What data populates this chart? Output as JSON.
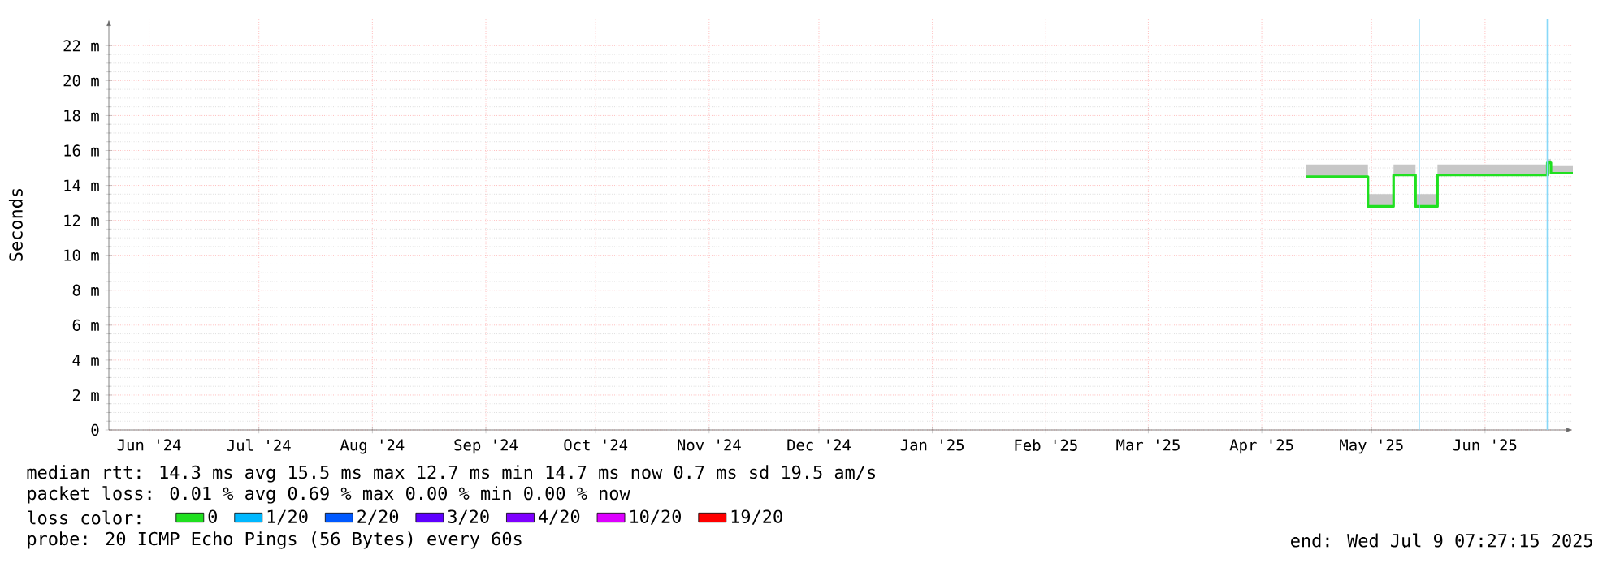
{
  "chart_data": {
    "type": "step",
    "ylabel": "Seconds",
    "legend_title": "loss color:",
    "legend": "bottom",
    "grid": true,
    "xlim": [
      "2024-06-04",
      "2025-07-09"
    ],
    "xticks": [
      {
        "value": "2024-06-15",
        "label": "Jun '24"
      },
      {
        "value": "2024-07-15",
        "label": "Jul '24"
      },
      {
        "value": "2024-08-15",
        "label": "Aug '24"
      },
      {
        "value": "2024-09-15",
        "label": "Sep '24"
      },
      {
        "value": "2024-10-15",
        "label": "Oct '24"
      },
      {
        "value": "2024-11-15",
        "label": "Nov '24"
      },
      {
        "value": "2024-12-15",
        "label": "Dec '24"
      },
      {
        "value": "2025-01-15",
        "label": "Jan '25"
      },
      {
        "value": "2025-02-15",
        "label": "Feb '25"
      },
      {
        "value": "2025-03-15",
        "label": "Mar '25"
      },
      {
        "value": "2025-04-15",
        "label": "Apr '25"
      },
      {
        "value": "2025-05-15",
        "label": "May '25"
      },
      {
        "value": "2025-06-15",
        "label": "Jun '25"
      }
    ],
    "ylim": [
      0,
      23.5
    ],
    "yticks": [
      0,
      {
        "value": 2,
        "label": "2 m"
      },
      {
        "value": 4,
        "label": "4 m"
      },
      {
        "value": 6,
        "label": "6 m"
      },
      {
        "value": 8,
        "label": "8 m"
      },
      {
        "value": 10,
        "label": "10 m"
      },
      {
        "value": 12,
        "label": "12 m"
      },
      {
        "value": 14,
        "label": "14 m"
      },
      {
        "value": 16,
        "label": "16 m"
      },
      {
        "value": 18,
        "label": "18 m"
      },
      {
        "value": 20,
        "label": "20 m"
      },
      {
        "value": 22,
        "label": "22 m"
      }
    ],
    "series": [
      {
        "name": "0",
        "color": "#20e020",
        "x": [
          "2025-04-27",
          "2025-05-14",
          "2025-05-21",
          "2025-05-27",
          "2025-06-02",
          "2025-07-02",
          "2025-07-03",
          "2025-07-09"
        ],
        "values": [
          14.5,
          12.8,
          14.6,
          12.8,
          14.6,
          15.3,
          14.7,
          14.7
        ],
        "lower": [
          14.5,
          12.8,
          14.6,
          12.8,
          14.6,
          15.3,
          14.7,
          14.7
        ],
        "upper": [
          15.2,
          13.5,
          15.2,
          13.5,
          15.2,
          15.5,
          15.1,
          15.1
        ]
      },
      {
        "name": "1/20",
        "color": "#00b8ff"
      },
      {
        "name": "2/20",
        "color": "#0059ff"
      },
      {
        "name": "3/20",
        "color": "#5e00ff"
      },
      {
        "name": "4/20",
        "color": "#7e00ff"
      },
      {
        "name": "10/20",
        "color": "#dd00ff"
      },
      {
        "name": "19/20",
        "color": "#ff0000"
      }
    ],
    "ref_lines": [
      {
        "axis": "x",
        "value": "2025-05-28",
        "color": "#88d8f8"
      },
      {
        "axis": "x",
        "value": "2025-07-02",
        "color": "#88d8f8"
      }
    ],
    "annotations": [
      "median rtt:  14.3 ms avg  15.5 ms max  12.7 ms min  14.7 ms now  0.7 ms sd  19.5   am/s",
      "packet loss: 0.01 % avg  0.69 % max  0.00 % min  0.00 % now",
      "probe:       20 ICMP Echo Pings (56 Bytes) every 60s",
      "end: Wed Jul  9 07:27:15 2025"
    ]
  }
}
